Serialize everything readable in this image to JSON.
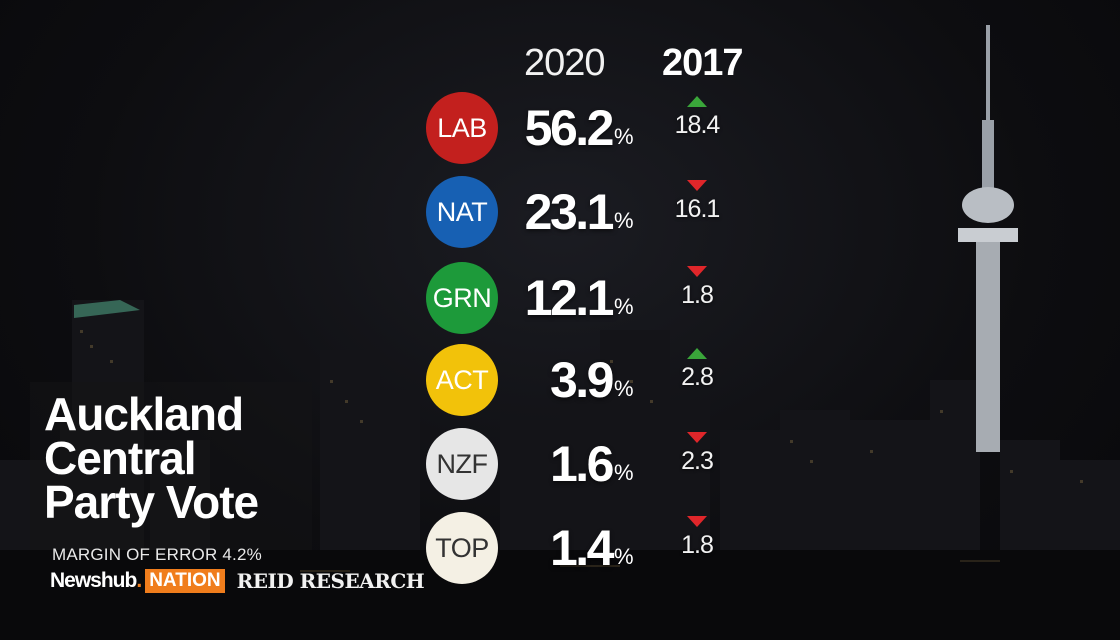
{
  "headers": {
    "current_year": "2020",
    "previous_year": "2017"
  },
  "parties": [
    {
      "code": "LAB",
      "value": "56.2",
      "pct_sign": "%",
      "change": "18.4",
      "direction": "up",
      "color": "#c3201e",
      "text_color": "#ffffff"
    },
    {
      "code": "NAT",
      "value": "23.1",
      "pct_sign": "%",
      "change": "16.1",
      "direction": "down",
      "color": "#1760b3",
      "text_color": "#ffffff"
    },
    {
      "code": "GRN",
      "value": "12.1",
      "pct_sign": "%",
      "change": "1.8",
      "direction": "down",
      "color": "#1d9a3a",
      "text_color": "#ffffff"
    },
    {
      "code": "ACT",
      "value": "3.9",
      "pct_sign": "%",
      "change": "2.8",
      "direction": "up",
      "color": "#f2c20a",
      "text_color": "#ffffff"
    },
    {
      "code": "NZF",
      "value": "1.6",
      "pct_sign": "%",
      "change": "2.3",
      "direction": "down",
      "color": "#e6e6e6",
      "text_color": "#333333"
    },
    {
      "code": "TOP",
      "value": "1.4",
      "pct_sign": "%",
      "change": "1.8",
      "direction": "down",
      "color": "#f4f0e4",
      "text_color": "#333333"
    }
  ],
  "title": {
    "line1": "Auckland",
    "line2": "Central",
    "line3": "Party Vote"
  },
  "margin_of_error": "MARGIN OF ERROR 4.2%",
  "logos": {
    "newshub": "Newshub",
    "newshub_dot": ".",
    "nation": "NATION",
    "reid": "REID RESEARCH"
  },
  "colors": {
    "up": "#3aa63a",
    "down": "#e0262a",
    "nation_brand": "#f07d1c"
  },
  "icons": {
    "up": "triangle-up-icon",
    "down": "triangle-down-icon"
  }
}
